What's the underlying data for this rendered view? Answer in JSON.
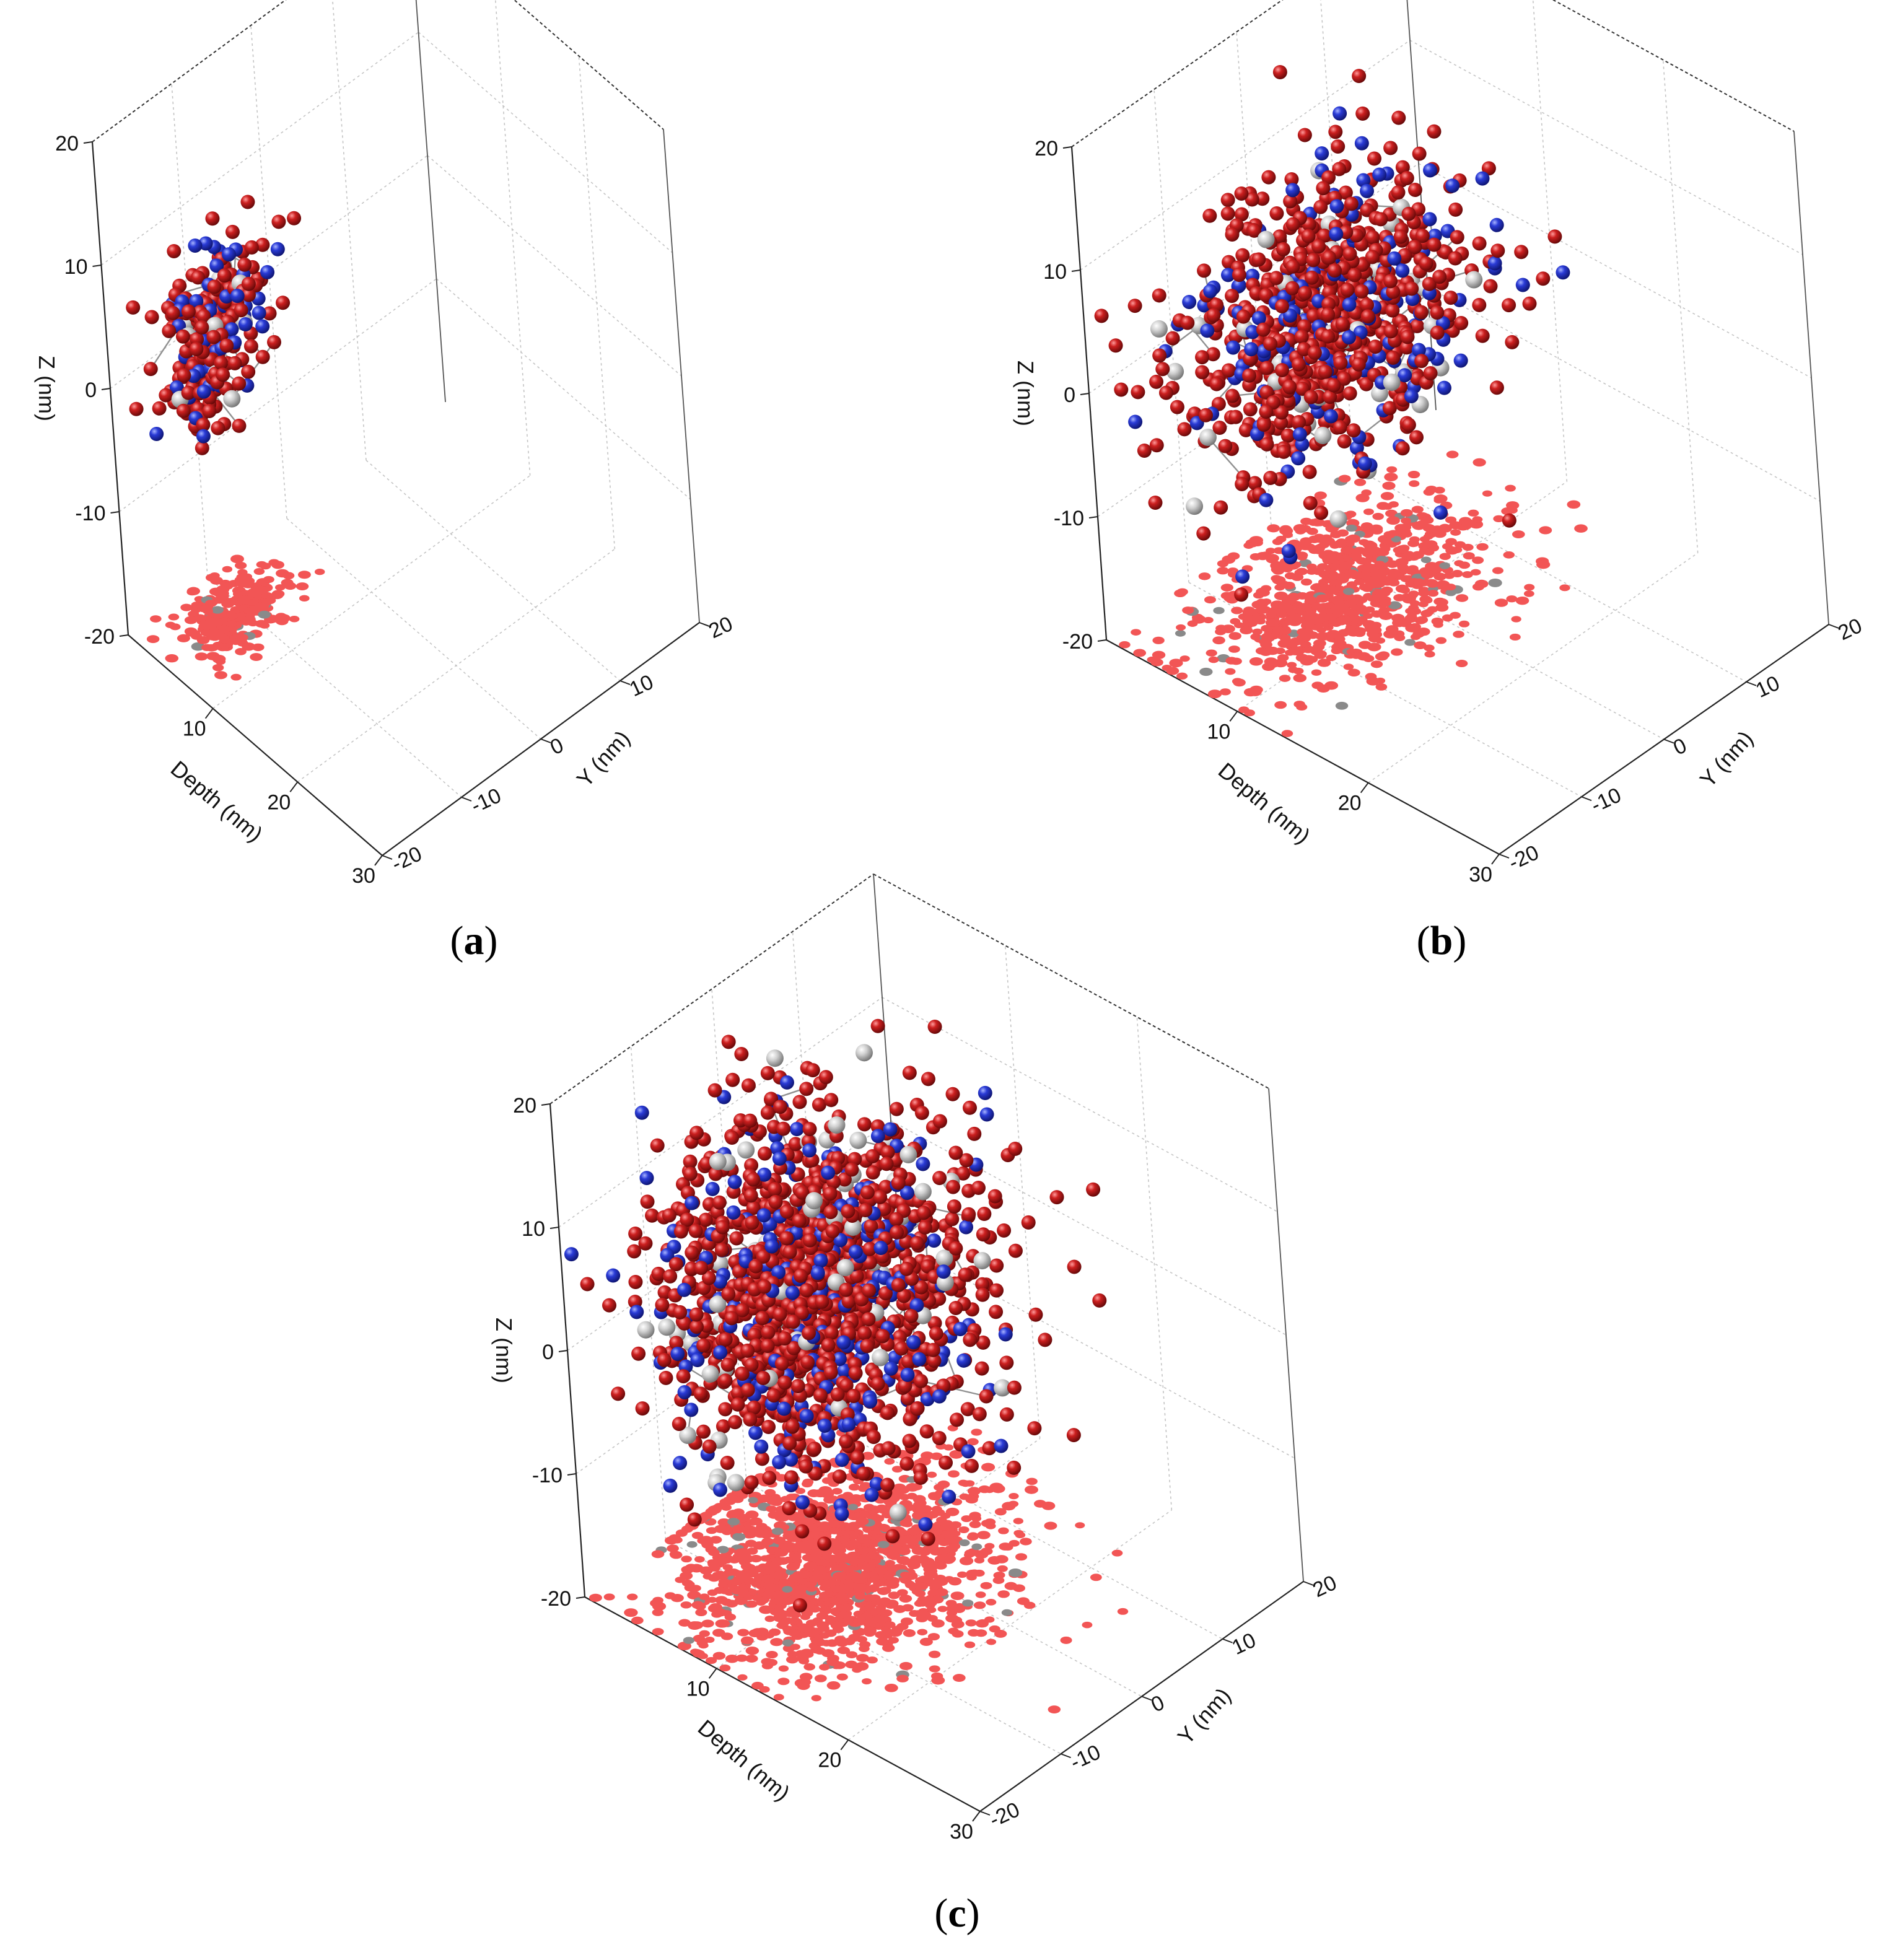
{
  "figure": {
    "panels": [
      {
        "id": "a",
        "caption_letter": "a"
      },
      {
        "id": "b",
        "caption_letter": "b"
      },
      {
        "id": "c",
        "caption_letter": "c"
      }
    ]
  },
  "colors": {
    "sphere_red": "#b11a1a",
    "sphere_blue": "#2233cc",
    "sphere_gray": "#c8c8c8",
    "projection_red": "#f25555",
    "projection_gray": "#8a8a8a",
    "bond": "#909090"
  },
  "chart_data": [
    {
      "type": "scatter",
      "panel": "a",
      "dimensions": "3d",
      "xlabel": "Depth (nm)",
      "ylabel": "Y (nm)",
      "zlabel": "Z (nm)",
      "xlim": [
        0,
        30
      ],
      "ylim": [
        -20,
        20
      ],
      "zlim": [
        -20,
        20
      ],
      "xticks": [
        "10",
        "20",
        "30"
      ],
      "yticks": [
        "-20",
        "-10",
        "0",
        "10",
        "20"
      ],
      "zticks": [
        "-20",
        "-10",
        "0",
        "10",
        "20"
      ],
      "grid": true,
      "cluster": {
        "center": [
          4,
          -11,
          3
        ],
        "spread": [
          3,
          5,
          5
        ],
        "n_points": 260,
        "tilt": 0.45
      },
      "projection_plane": "z = -20"
    },
    {
      "type": "scatter",
      "panel": "b",
      "dimensions": "3d",
      "xlabel": "Depth (nm)",
      "ylabel": "Y (nm)",
      "zlabel": "Z (nm)",
      "xlim": [
        0,
        30
      ],
      "ylim": [
        -20,
        20
      ],
      "zlim": [
        -20,
        20
      ],
      "xticks": [
        "10",
        "20",
        "30"
      ],
      "yticks": [
        "-20",
        "-10",
        "0",
        "10",
        "20"
      ],
      "zticks": [
        "-20",
        "-10",
        "0",
        "10",
        "20"
      ],
      "grid": true,
      "cluster": {
        "center": [
          7,
          -2,
          2
        ],
        "spread": [
          6,
          13,
          8
        ],
        "n_points": 820,
        "tilt": 0.1
      },
      "projection_plane": "z = -20"
    },
    {
      "type": "scatter",
      "panel": "c",
      "dimensions": "3d",
      "xlabel": "Depth (nm)",
      "ylabel": "Y (nm)",
      "zlabel": "Z (nm)",
      "xlim": [
        0,
        30
      ],
      "ylim": [
        -20,
        20
      ],
      "zlim": [
        -20,
        20
      ],
      "xticks": [
        "10",
        "20",
        "30"
      ],
      "yticks": [
        "-20",
        "-10",
        "0",
        "10",
        "20"
      ],
      "zticks": [
        "-20",
        "-10",
        "0",
        "10",
        "20"
      ],
      "grid": true,
      "cluster": {
        "center": [
          9,
          -3,
          2
        ],
        "spread": [
          8,
          13,
          11
        ],
        "n_points": 1500,
        "tilt": 0.0
      },
      "projection_plane": "z = -20"
    }
  ]
}
